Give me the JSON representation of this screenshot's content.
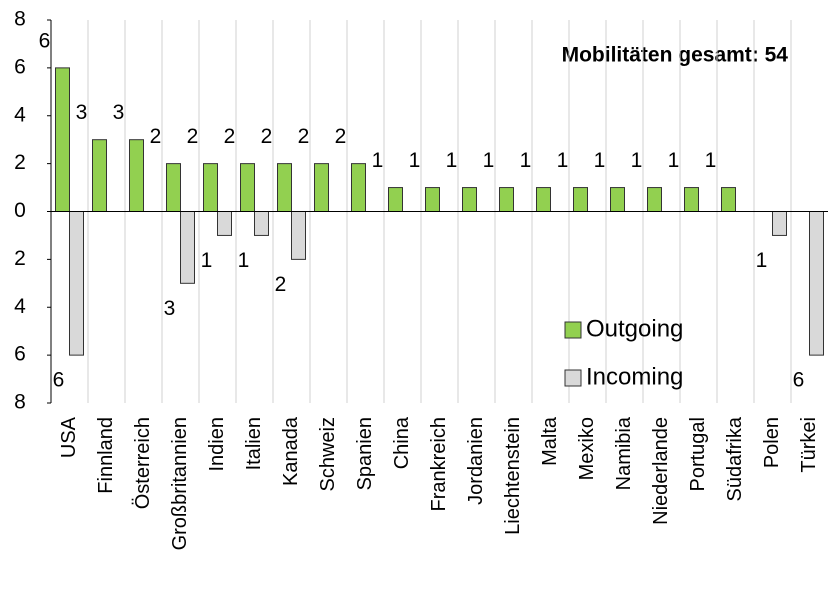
{
  "chart_data": {
    "type": "bar",
    "annotation": "Mobilitäten gesamt: 54",
    "categories": [
      "USA",
      "Finnland",
      "Österreich",
      "Großbritannien",
      "Indien",
      "Italien",
      "Kanada",
      "Schweiz",
      "Spanien",
      "China",
      "Frankreich",
      "Jordanien",
      "Liechtenstein",
      "Malta",
      "Mexiko",
      "Namibia",
      "Niederlande",
      "Portugal",
      "Südafrika",
      "Polen",
      "Türkei"
    ],
    "series": [
      {
        "name": "Outgoing",
        "color": "#92d050",
        "values": [
          6,
          3,
          3,
          2,
          2,
          2,
          2,
          2,
          2,
          1,
          1,
          1,
          1,
          1,
          1,
          1,
          1,
          1,
          1,
          null,
          null
        ]
      },
      {
        "name": "Incoming",
        "color": "#d9d9d9",
        "values": [
          -6,
          null,
          null,
          -3,
          -1,
          -1,
          -2,
          null,
          null,
          null,
          null,
          null,
          null,
          null,
          null,
          null,
          null,
          null,
          null,
          -1,
          -6
        ],
        "value_labels": [
          "6",
          null,
          null,
          "3",
          "1",
          "1",
          "2",
          null,
          null,
          null,
          null,
          null,
          null,
          null,
          null,
          null,
          null,
          null,
          null,
          "1",
          "6"
        ]
      }
    ],
    "ylim": [
      -8,
      8
    ],
    "yticks": [
      {
        "value": -8,
        "label": "8"
      },
      {
        "value": -6,
        "label": "6"
      },
      {
        "value": -4,
        "label": "4"
      },
      {
        "value": -2,
        "label": "2"
      },
      0,
      2,
      4,
      6,
      8
    ],
    "legend": "lower right"
  }
}
